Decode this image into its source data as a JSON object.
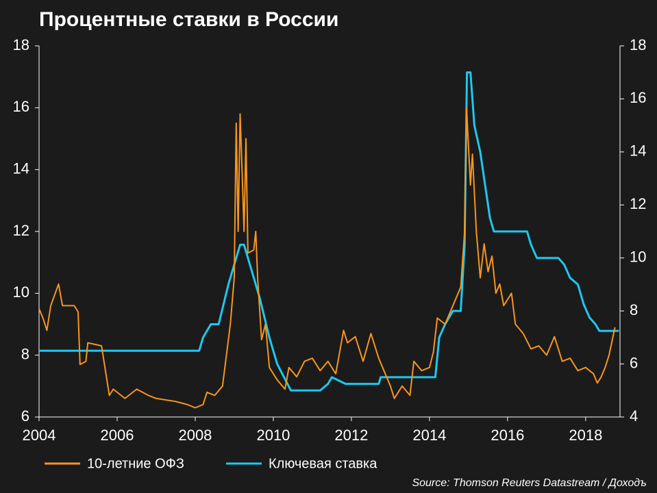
{
  "chart_data": {
    "type": "line",
    "title": "Процентные ставки в России",
    "source": "Source: Thomson Reuters Datastream / Доходъ",
    "xlim": [
      2004,
      2018.88
    ],
    "xticks": [
      2004,
      2006,
      2008,
      2010,
      2012,
      2014,
      2016,
      2018
    ],
    "ylim": [
      6,
      18
    ],
    "yticks": [
      6,
      8,
      10,
      12,
      14,
      16,
      18
    ],
    "y2lim": [
      4,
      18
    ],
    "y2ticks": [
      4,
      6,
      8,
      10,
      12,
      14,
      16,
      18
    ],
    "legend": "bottom",
    "series": [
      {
        "name": "10-летние ОФЗ",
        "color": "#f7961e",
        "x": [
          2004.0,
          2004.1,
          2004.2,
          2004.3,
          2004.5,
          2004.6,
          2004.9,
          2005.0,
          2005.05,
          2005.2,
          2005.25,
          2005.6,
          2005.7,
          2005.8,
          2005.9,
          2006.2,
          2006.5,
          2006.8,
          2007.0,
          2007.5,
          2007.8,
          2008.0,
          2008.2,
          2008.3,
          2008.5,
          2008.7,
          2008.8,
          2008.9,
          2009.0,
          2009.05,
          2009.1,
          2009.15,
          2009.2,
          2009.25,
          2009.3,
          2009.35,
          2009.5,
          2009.55,
          2009.6,
          2009.7,
          2009.8,
          2009.9,
          2010.1,
          2010.3,
          2010.4,
          2010.6,
          2010.8,
          2011.0,
          2011.2,
          2011.4,
          2011.6,
          2011.8,
          2011.9,
          2012.1,
          2012.3,
          2012.5,
          2012.7,
          2012.9,
          2013.0,
          2013.1,
          2013.3,
          2013.5,
          2013.6,
          2013.8,
          2014.0,
          2014.1,
          2014.2,
          2014.4,
          2014.6,
          2014.8,
          2014.9,
          2014.95,
          2015.05,
          2015.1,
          2015.2,
          2015.3,
          2015.4,
          2015.5,
          2015.6,
          2015.7,
          2015.8,
          2015.9,
          2016.1,
          2016.2,
          2016.4,
          2016.6,
          2016.8,
          2017.0,
          2017.2,
          2017.4,
          2017.6,
          2017.8,
          2018.0,
          2018.2,
          2018.3,
          2018.4,
          2018.5,
          2018.6,
          2018.75
        ],
        "values": [
          9.5,
          9.2,
          8.8,
          9.6,
          10.3,
          9.6,
          9.6,
          9.4,
          7.7,
          7.8,
          8.4,
          8.3,
          7.5,
          6.7,
          6.9,
          6.6,
          6.9,
          6.7,
          6.6,
          6.5,
          6.4,
          6.3,
          6.4,
          6.8,
          6.7,
          7.0,
          8.0,
          9.0,
          10.5,
          15.5,
          12.0,
          15.8,
          14.0,
          12.0,
          15.0,
          11.3,
          11.4,
          12.0,
          10.5,
          8.5,
          9.0,
          7.6,
          7.2,
          6.9,
          7.6,
          7.3,
          7.8,
          7.9,
          7.5,
          7.8,
          7.4,
          8.8,
          8.4,
          8.6,
          7.8,
          8.7,
          7.9,
          7.3,
          7.0,
          6.6,
          7.0,
          6.7,
          7.8,
          7.5,
          7.6,
          8.1,
          9.2,
          9.0,
          9.6,
          10.2,
          12.0,
          16.0,
          13.5,
          14.5,
          12.0,
          10.5,
          11.6,
          10.7,
          11.2,
          10.0,
          10.3,
          9.6,
          10.0,
          9.0,
          8.7,
          8.2,
          8.3,
          8.0,
          8.6,
          7.8,
          7.9,
          7.5,
          7.6,
          7.4,
          7.1,
          7.3,
          7.6,
          8.0,
          8.9
        ]
      },
      {
        "name": "Ключевая ставка",
        "color": "#1ec8f0",
        "axis": "y2",
        "x": [
          2004.0,
          2008.1,
          2008.2,
          2008.4,
          2008.6,
          2008.85,
          2008.95,
          2009.15,
          2009.25,
          2009.45,
          2009.65,
          2009.9,
          2010.1,
          2010.45,
          2011.2,
          2011.4,
          2011.5,
          2011.85,
          2012.7,
          2012.75,
          2014.15,
          2014.25,
          2014.4,
          2014.6,
          2014.8,
          2014.9,
          2014.96,
          2015.05,
          2015.15,
          2015.3,
          2015.45,
          2015.55,
          2015.65,
          2016.5,
          2016.6,
          2016.75,
          2017.3,
          2017.45,
          2017.6,
          2017.8,
          2017.95,
          2018.1,
          2018.25,
          2018.35,
          2018.85
        ],
        "values": [
          6.5,
          6.5,
          7.0,
          7.5,
          7.5,
          9.0,
          9.5,
          10.5,
          10.5,
          9.5,
          8.5,
          7.0,
          6.0,
          5.0,
          5.0,
          5.25,
          5.5,
          5.25,
          5.25,
          5.5,
          5.5,
          7.0,
          7.5,
          8.0,
          8.0,
          10.5,
          17.0,
          17.0,
          15.0,
          14.0,
          12.5,
          11.5,
          11.0,
          11.0,
          10.5,
          10.0,
          10.0,
          9.75,
          9.25,
          9.0,
          8.25,
          7.75,
          7.5,
          7.25,
          7.25
        ]
      }
    ]
  }
}
